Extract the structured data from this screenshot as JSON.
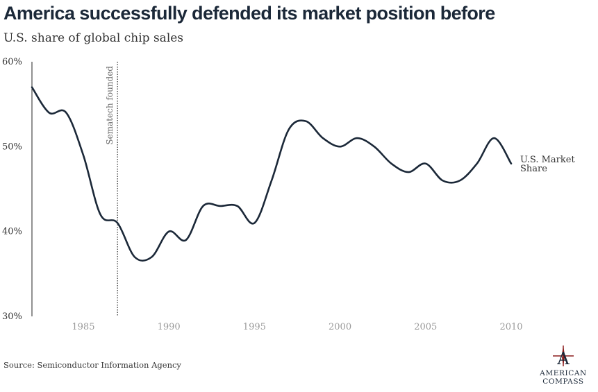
{
  "header": {
    "title": "America successfully defended its market position before",
    "subtitle": "U.S. share of global chip sales"
  },
  "footer": {
    "source": "Source: Semiconductor Information Agency",
    "logo_line1": "AMERICAN",
    "logo_line2": "COMPASS",
    "logo_letter": "A"
  },
  "colors": {
    "line": "#1b2838",
    "axis_text": "#9a9a9a",
    "logo_red": "#8b1c1c"
  },
  "chart_data": {
    "type": "line",
    "title": "America successfully defended its market position before",
    "subtitle": "U.S. share of global chip sales",
    "xlim": [
      1982,
      2010
    ],
    "ylim": [
      30,
      60
    ],
    "x_ticks": [
      1985,
      1990,
      1995,
      2000,
      2005,
      2010
    ],
    "y_ticks": [
      {
        "value": 60,
        "label": "60%"
      },
      {
        "value": 50,
        "label": "50%"
      },
      {
        "value": 40,
        "label": "40%"
      },
      {
        "value": 30,
        "label": "30%"
      }
    ],
    "grid": false,
    "series": [
      {
        "name": "U.S. Market Share",
        "label_lines": [
          "U.S. Market",
          "Share"
        ],
        "x": [
          1982,
          1983,
          1984,
          1985,
          1986,
          1987,
          1988,
          1989,
          1990,
          1991,
          1992,
          1993,
          1994,
          1995,
          1996,
          1997,
          1998,
          1999,
          2000,
          2001,
          2002,
          2003,
          2004,
          2005,
          2006,
          2007,
          2008,
          2009,
          2010
        ],
        "values": [
          57,
          54,
          54,
          49,
          42,
          41,
          37,
          37,
          40,
          39,
          43,
          43,
          43,
          41,
          46,
          52,
          53,
          51,
          50,
          51,
          50,
          48,
          47,
          48,
          46,
          46,
          48,
          51,
          48
        ]
      }
    ],
    "annotations": [
      {
        "x": 1987,
        "label": "Sematech founded",
        "style": "dotted-vertical-line"
      }
    ]
  }
}
